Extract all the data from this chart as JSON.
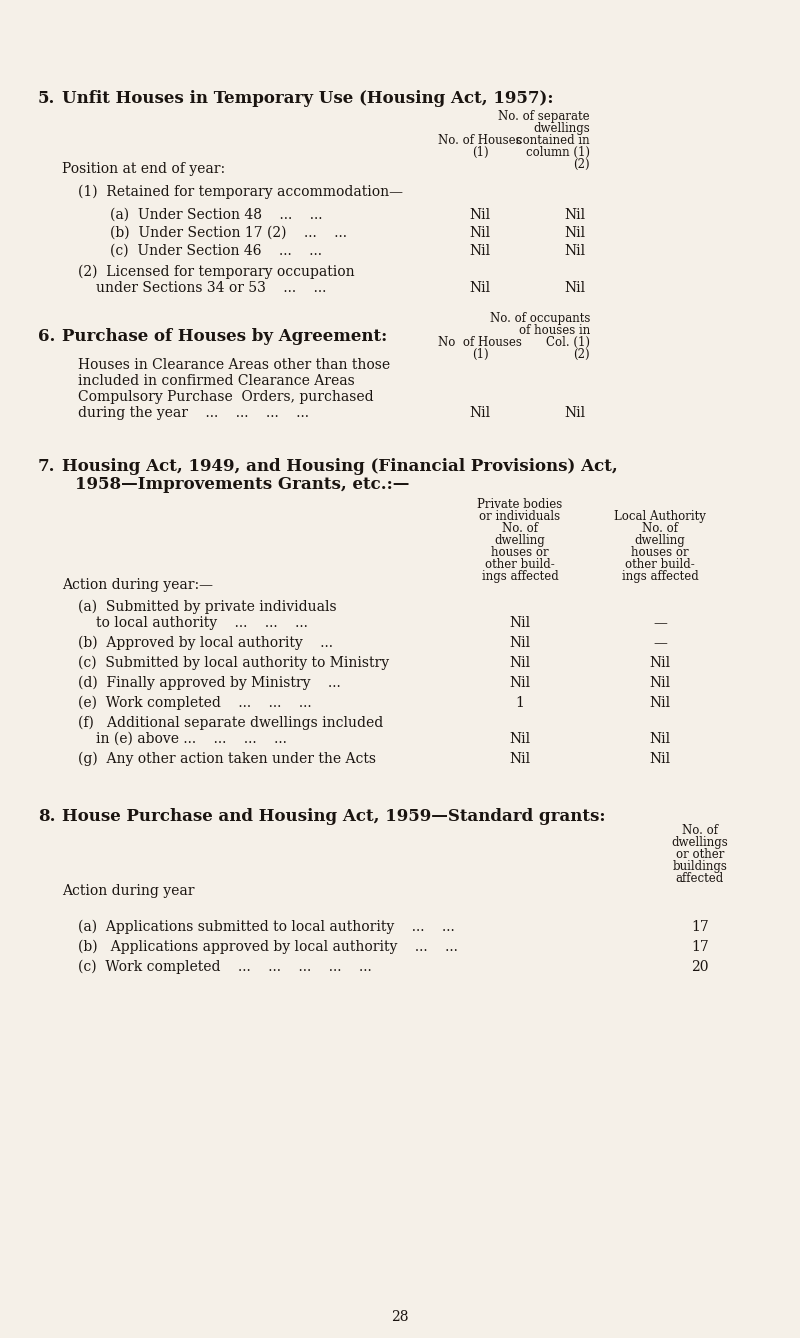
{
  "bg_color": "#f5f0e8",
  "text_color": "#1a1410",
  "page_number": "28",
  "section5": {
    "number": "5.",
    "title": "Unfit Houses in Temporary Use (Housing Act, 1957):"
  },
  "section6": {
    "number": "6.",
    "title": "Purchase of Houses by Agreement:"
  },
  "section7": {
    "number": "7.",
    "title_line1": "Housing Act, 1949, and Housing (Financial Provisions) Act,",
    "title_line2": "1958—Improvements Grants, etc.:—"
  },
  "section8": {
    "number": "8.",
    "title": "House Purchase and Housing Act, 1959—Standard grants:"
  }
}
